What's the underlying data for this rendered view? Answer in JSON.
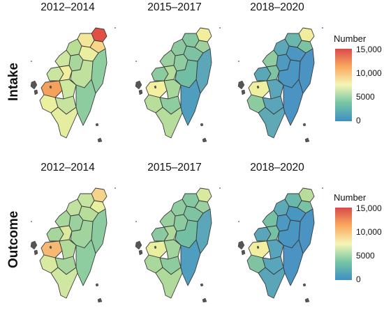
{
  "rows": [
    {
      "title": "Intake",
      "periods": [
        "2012–2014",
        "2015–2017",
        "2018–2020"
      ]
    },
    {
      "title": "Outcome",
      "periods": [
        "2012–2014",
        "2015–2017",
        "2018–2020"
      ]
    }
  ],
  "legend": {
    "title": "Number",
    "labels": [
      "15,000",
      "10,000",
      "5000",
      "0"
    ],
    "max": 15000,
    "colors": [
      "#3f8fc4",
      "#75c5a5",
      "#f5f5b5",
      "#fbaa5f",
      "#d94a4a"
    ]
  },
  "palette": {
    "outline": "#3a3a3a",
    "islands": "#555555"
  }
}
